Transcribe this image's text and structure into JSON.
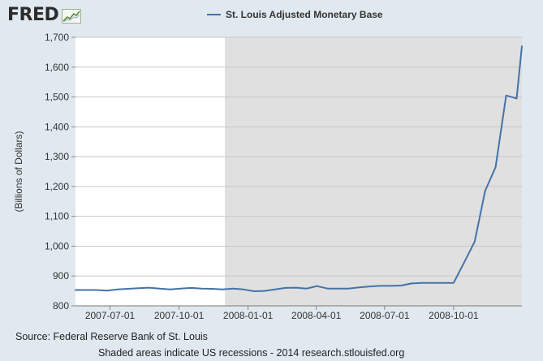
{
  "branding": {
    "logo_text": "FRED",
    "logo_icon": "line-chart-icon"
  },
  "footer": {
    "source": "Source: Federal Reserve Bank of St. Louis",
    "note": "Shaded areas indicate US recessions - 2014 research.stlouisfed.org"
  },
  "colors": {
    "background": "#e1e9f0",
    "plot": "#ffffff",
    "recession": "#e0e0e0",
    "series": "#4572a7",
    "grid": "#c8c8c8"
  },
  "chart_data": {
    "type": "line",
    "title": "",
    "xlabel": "",
    "ylabel": "(Billions of Dollars)",
    "ylim": [
      800,
      1700
    ],
    "xlim": [
      "2007-05-16",
      "2008-12-31"
    ],
    "yticks": [
      800,
      900,
      1000,
      1100,
      1200,
      1300,
      1400,
      1500,
      1600,
      1700
    ],
    "ytick_labels": [
      "800",
      "900",
      "1,000",
      "1,100",
      "1,200",
      "1,300",
      "1,400",
      "1,500",
      "1,600",
      "1,700"
    ],
    "xticks": [
      "2007-07-01",
      "2007-10-01",
      "2008-01-01",
      "2008-04-01",
      "2008-07-01",
      "2008-10-01"
    ],
    "grid": true,
    "legend_position": "top",
    "recession_shading": [
      {
        "start": "2007-12-01",
        "end": "2008-12-31"
      }
    ],
    "series": [
      {
        "name": "St. Louis Adjusted Monetary Base",
        "x": [
          "2007-05-16",
          "2007-05-30",
          "2007-06-13",
          "2007-06-27",
          "2007-07-11",
          "2007-07-25",
          "2007-08-08",
          "2007-08-22",
          "2007-09-05",
          "2007-09-19",
          "2007-10-03",
          "2007-10-17",
          "2007-10-31",
          "2007-11-14",
          "2007-11-28",
          "2007-12-12",
          "2007-12-26",
          "2008-01-09",
          "2008-01-23",
          "2008-02-06",
          "2008-02-20",
          "2008-03-05",
          "2008-03-19",
          "2008-04-02",
          "2008-04-16",
          "2008-04-30",
          "2008-05-14",
          "2008-05-28",
          "2008-06-11",
          "2008-06-25",
          "2008-07-09",
          "2008-07-23",
          "2008-08-06",
          "2008-08-20",
          "2008-09-03",
          "2008-09-17",
          "2008-10-01",
          "2008-10-15",
          "2008-10-29",
          "2008-11-12",
          "2008-11-26",
          "2008-12-10",
          "2008-12-24"
        ],
        "y": [
          853,
          853,
          853,
          851,
          855,
          857,
          859,
          861,
          858,
          855,
          858,
          860,
          858,
          857,
          855,
          858,
          855,
          849,
          850,
          855,
          860,
          861,
          858,
          866,
          858,
          858,
          858,
          862,
          865,
          867,
          867,
          868,
          875,
          877,
          877,
          877,
          877,
          945,
          1015,
          1185,
          1265,
          1505,
          1495
        ]
      },
      {
        "name": "",
        "x": [
          "2008-12-24",
          "2008-12-31"
        ],
        "y": [
          1495,
          1670
        ]
      }
    ]
  }
}
